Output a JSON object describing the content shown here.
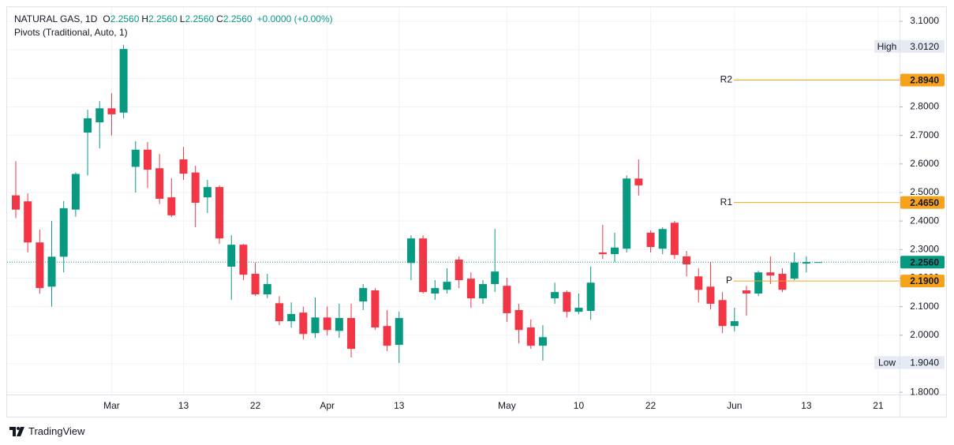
{
  "chart_data": {
    "type": "candlestick",
    "title": "NATURAL GAS, 1D",
    "ohlc_legend": [
      {
        "key": "O",
        "value": "2.2560"
      },
      {
        "key": "H",
        "value": "2.2560"
      },
      {
        "key": "L",
        "value": "2.2560"
      },
      {
        "key": "C",
        "value": "2.2560"
      }
    ],
    "change": "+0.0000 (+0.00%)",
    "indicator": "Pivots (Traditional, Auto, 1)",
    "up_color": "#089981",
    "down_color": "#f23645",
    "pivot_color": "#f7a21b",
    "categories": [
      null,
      null,
      null,
      null,
      null,
      null,
      null,
      null,
      "Mar",
      null,
      null,
      null,
      null,
      null,
      "13",
      null,
      null,
      null,
      null,
      null,
      "22",
      null,
      null,
      null,
      null,
      null,
      "Apr",
      null,
      null,
      null,
      null,
      null,
      "13",
      null,
      null,
      null,
      null,
      null,
      null,
      null,
      null,
      "May",
      null,
      null,
      null,
      null,
      null,
      "10",
      null,
      null,
      null,
      null,
      null,
      "22",
      null,
      null,
      null,
      null,
      null,
      null,
      "Jun",
      null,
      null,
      null,
      null,
      null,
      "13",
      null,
      null,
      null,
      null,
      null,
      "21"
    ],
    "open": [
      2.49,
      2.469,
      2.325,
      2.17,
      2.275,
      2.44,
      2.71,
      2.746,
      2.795,
      2.78,
      2.59,
      2.65,
      2.585,
      2.483,
      2.616,
      2.57,
      2.483,
      2.519,
      2.24,
      2.317,
      2.215,
      2.143,
      2.112,
      2.049,
      2.079,
      2.007,
      2.062,
      2.015,
      2.06,
      2.118,
      2.157,
      2.032,
      1.966,
      2.253,
      2.339,
      2.146,
      2.159,
      2.265,
      2.198,
      2.129,
      2.179,
      2.173,
      2.088,
      2.027,
      1.963,
      2.129,
      2.151,
      2.082,
      2.085,
      2.29,
      2.284,
      2.303,
      2.549,
      2.359,
      2.303,
      2.394,
      2.276,
      2.206,
      2.17,
      2.123,
      2.032,
      2.157,
      2.146,
      2.22,
      2.215,
      2.198,
      2.251,
      2.256,
      null,
      null,
      null,
      null,
      null
    ],
    "high": [
      2.61,
      2.497,
      2.37,
      2.4,
      2.47,
      2.57,
      2.79,
      2.82,
      2.848,
      3.017,
      2.68,
      2.677,
      2.635,
      2.55,
      2.66,
      2.594,
      2.544,
      2.525,
      2.35,
      2.32,
      2.254,
      2.215,
      2.137,
      2.115,
      2.1,
      2.132,
      2.1,
      2.11,
      2.11,
      2.179,
      2.165,
      2.088,
      2.082,
      2.35,
      2.35,
      2.193,
      2.234,
      2.276,
      2.22,
      2.193,
      2.372,
      2.201,
      2.11,
      2.055,
      2.035,
      2.184,
      2.157,
      2.146,
      2.24,
      2.387,
      2.359,
      2.56,
      2.616,
      2.367,
      2.378,
      2.4,
      2.295,
      2.234,
      2.256,
      2.151,
      2.096,
      2.173,
      2.226,
      2.276,
      2.234,
      2.29,
      2.276,
      2.256,
      null,
      null,
      null,
      null,
      null
    ],
    "low": [
      2.41,
      2.29,
      2.145,
      2.1,
      2.22,
      2.415,
      2.56,
      2.655,
      2.7,
      2.76,
      2.5,
      2.516,
      2.46,
      2.414,
      2.544,
      2.378,
      2.428,
      2.32,
      2.124,
      2.193,
      2.137,
      2.13,
      2.035,
      2.027,
      1.985,
      1.99,
      1.999,
      1.99,
      1.922,
      2.088,
      2.018,
      1.944,
      1.902,
      2.193,
      2.146,
      2.124,
      2.146,
      2.165,
      2.096,
      2.11,
      2.151,
      2.046,
      1.971,
      1.952,
      1.911,
      2.11,
      2.062,
      2.074,
      2.054,
      2.267,
      2.256,
      2.29,
      2.489,
      2.29,
      2.284,
      2.267,
      2.206,
      2.115,
      2.09,
      2.007,
      2.013,
      2.068,
      2.137,
      2.179,
      2.151,
      2.193,
      2.22,
      2.256,
      null,
      null,
      null,
      null,
      null
    ],
    "close": [
      2.44,
      2.325,
      2.165,
      2.275,
      2.445,
      2.565,
      2.76,
      2.795,
      2.774,
      3.003,
      2.65,
      2.58,
      2.478,
      2.42,
      2.566,
      2.464,
      2.519,
      2.339,
      2.317,
      2.212,
      2.143,
      2.179,
      2.049,
      2.074,
      2.004,
      2.062,
      2.018,
      2.06,
      1.952,
      2.165,
      2.027,
      1.963,
      2.06,
      2.339,
      2.151,
      2.165,
      2.187,
      2.193,
      2.129,
      2.179,
      2.223,
      2.077,
      2.018,
      1.963,
      1.993,
      2.151,
      2.082,
      2.096,
      2.184,
      2.284,
      2.307,
      2.549,
      2.525,
      2.309,
      2.372,
      2.281,
      2.248,
      2.159,
      2.11,
      2.032,
      2.049,
      2.146,
      2.22,
      2.209,
      2.159,
      2.254,
      2.256,
      2.256,
      null,
      null,
      null,
      null,
      null
    ],
    "ylim": [
      1.792,
      3.147
    ],
    "yticks": [
      {
        "value": 1.8,
        "label": "1.8000"
      },
      {
        "value": 1.9,
        "label": "1.9000"
      },
      {
        "value": 2.0,
        "label": "2.0000"
      },
      {
        "value": 2.1,
        "label": "2.1000"
      },
      {
        "value": 2.2,
        "label": "2.2000"
      },
      {
        "value": 2.3,
        "label": "2.3000"
      },
      {
        "value": 2.4,
        "label": "2.4000"
      },
      {
        "value": 2.5,
        "label": "2.5000"
      },
      {
        "value": 2.6,
        "label": "2.6000"
      },
      {
        "value": 2.7,
        "label": "2.7000"
      },
      {
        "value": 2.8,
        "label": "2.8000"
      },
      {
        "value": 2.9,
        "label": "2.9000"
      },
      {
        "value": 3.0,
        "label": "3.0000"
      },
      {
        "value": 3.1,
        "label": "3.1000"
      }
    ],
    "grid": true,
    "last_price": {
      "value": 2.256,
      "label": "2.2560"
    },
    "range_markers": [
      {
        "name": "High",
        "value": 3.012,
        "label": "3.0120"
      },
      {
        "name": "Low",
        "value": 1.904,
        "label": "1.9040"
      }
    ],
    "pivots": [
      {
        "name": "R2",
        "value": 2.894,
        "label": "2.8940"
      },
      {
        "name": "R1",
        "value": 2.465,
        "label": "2.4650"
      },
      {
        "name": "P",
        "value": 2.19,
        "label": "2.1900"
      }
    ],
    "footer": "TradingView"
  }
}
